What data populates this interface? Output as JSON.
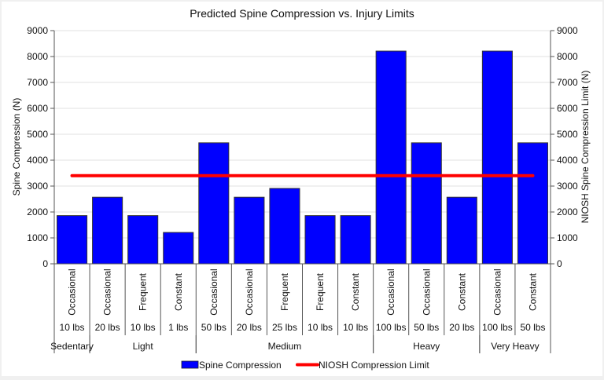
{
  "chart_data": {
    "type": "bar",
    "title": "Predicted Spine Compression vs. Injury Limits",
    "ylabel": "Spine Compression (N)",
    "ylabel_right": "NIOSH Spine Compression Limit (N)",
    "xlabel": "",
    "ylim": [
      0,
      9000
    ],
    "ylim_right": [
      0,
      9000
    ],
    "yticks": [
      0,
      1000,
      2000,
      3000,
      4000,
      5000,
      6000,
      7000,
      8000,
      9000
    ],
    "grid": true,
    "legend_position": "bottom",
    "categories": [
      {
        "frequency": "Occasional",
        "load": "10 lbs",
        "group": "Sedentary"
      },
      {
        "frequency": "Occasional",
        "load": "20 lbs",
        "group": "Light"
      },
      {
        "frequency": "Frequent",
        "load": "10 lbs",
        "group": "Light"
      },
      {
        "frequency": "Constant",
        "load": "1 lbs",
        "group": "Light"
      },
      {
        "frequency": "Occasional",
        "load": "50 lbs",
        "group": "Medium"
      },
      {
        "frequency": "Occasional",
        "load": "20 lbs",
        "group": "Medium"
      },
      {
        "frequency": "Frequent",
        "load": "25 lbs",
        "group": "Medium"
      },
      {
        "frequency": "Frequent",
        "load": "10 lbs",
        "group": "Medium"
      },
      {
        "frequency": "Constant",
        "load": "10 lbs",
        "group": "Medium"
      },
      {
        "frequency": "Occasional",
        "load": "100 lbs",
        "group": "Heavy"
      },
      {
        "frequency": "Occasional",
        "load": "50 lbs",
        "group": "Heavy"
      },
      {
        "frequency": "Constant",
        "load": "20 lbs",
        "group": "Heavy"
      },
      {
        "frequency": "Occasional",
        "load": "100 lbs",
        "group": "Very Heavy"
      },
      {
        "frequency": "Constant",
        "load": "50 lbs",
        "group": "Very Heavy"
      }
    ],
    "groups": [
      {
        "label": "Sedentary",
        "start": 0,
        "count": 1
      },
      {
        "label": "Light",
        "start": 1,
        "count": 3
      },
      {
        "label": "Medium",
        "start": 4,
        "count": 5
      },
      {
        "label": "Heavy",
        "start": 9,
        "count": 3
      },
      {
        "label": "Very Heavy",
        "start": 12,
        "count": 2
      }
    ],
    "series": [
      {
        "name": "Spine Compression",
        "type": "bar",
        "color": "#0000ff",
        "values": [
          1860,
          2570,
          1860,
          1210,
          4670,
          2570,
          2910,
          1860,
          1860,
          8210,
          4670,
          2570,
          8210,
          4670
        ]
      },
      {
        "name": "NIOSH Compression Limit",
        "type": "line",
        "color": "#ff0000",
        "axis": "right",
        "values": [
          3400,
          3400,
          3400,
          3400,
          3400,
          3400,
          3400,
          3400,
          3400,
          3400,
          3400,
          3400,
          3400,
          3400
        ]
      }
    ]
  },
  "legend": {
    "bar_label": "Spine Compression",
    "line_label": "NIOSH Compression Limit"
  }
}
